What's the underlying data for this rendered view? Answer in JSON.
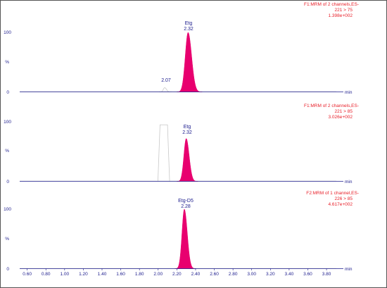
{
  "chart_data": {
    "type": "line",
    "x_unit": "min",
    "x_ticks": [
      "0.60",
      "0.80",
      "1.00",
      "1.20",
      "1.40",
      "1.60",
      "1.80",
      "2.00",
      "2.20",
      "2.40",
      "2.60",
      "2.80",
      "3.00",
      "3.20",
      "3.40",
      "3.60",
      "3.80"
    ],
    "x_range": [
      0.52,
      3.98
    ],
    "colors": {
      "axis": "#1a1a8c",
      "peak_fill": "#e8006f",
      "baseline": "#c8c8c8",
      "channel_text": "#e8202a",
      "frame": "#555555"
    },
    "panels": [
      {
        "channel_lines": [
          "F1:MRM of 2 channels,ES-",
          "221 > 75",
          "1.398e+002"
        ],
        "y_ticks": [
          "100",
          "%",
          "0"
        ],
        "peaks": [
          {
            "name": "Etg",
            "rt": "2.32",
            "x": 2.32,
            "height": 100,
            "width": 0.03,
            "filled": true
          },
          {
            "name": "",
            "rt": "2.07",
            "x": 2.07,
            "height": 7,
            "width": 0.015,
            "filled": false
          }
        ]
      },
      {
        "channel_lines": [
          "F1:MRM of 2 channels,ES-",
          "221 > 85",
          "3.026e+002"
        ],
        "y_ticks": [
          "100",
          "%",
          "0"
        ],
        "plateau": {
          "start": 2.02,
          "end": 2.1,
          "height": 95
        },
        "peaks": [
          {
            "name": "Etg",
            "rt": "2.32",
            "x": 2.3,
            "height": 72,
            "width": 0.025,
            "filled": true
          }
        ]
      },
      {
        "channel_lines": [
          "F2:MRM of 1 channel,ES-",
          "226 > 85",
          "4.617e+002"
        ],
        "y_ticks": [
          "100",
          "%",
          "0"
        ],
        "peaks": [
          {
            "name": "Etg-D5",
            "rt": "2.28",
            "x": 2.28,
            "height": 100,
            "width": 0.025,
            "filled": true
          }
        ]
      }
    ]
  }
}
